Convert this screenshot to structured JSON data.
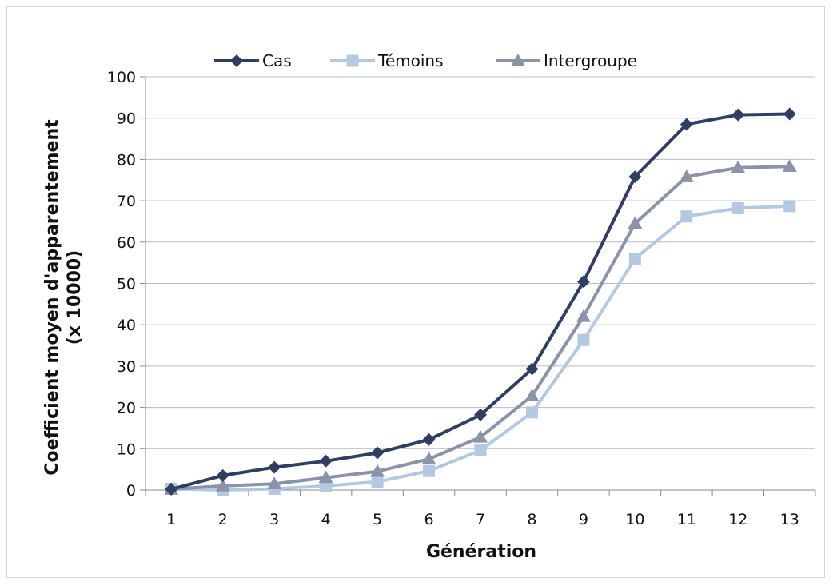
{
  "chart_data": {
    "type": "line",
    "title": "",
    "xlabel": "Génération",
    "ylabel_line1": "Coefficient moyen d'apparentement",
    "ylabel_line2": "(x 10000)",
    "ylim": [
      0,
      100
    ],
    "yticks": [
      0,
      10,
      20,
      30,
      40,
      50,
      60,
      70,
      80,
      90,
      100
    ],
    "grid": true,
    "legend_position": "top",
    "categories": [
      "1",
      "2",
      "3",
      "4",
      "5",
      "6",
      "7",
      "8",
      "9",
      "10",
      "11",
      "12",
      "13"
    ],
    "series": [
      {
        "name": "Cas",
        "marker": "diamond",
        "color": "#2f3e63",
        "values": [
          0.2,
          3.5,
          5.5,
          7.0,
          9.0,
          12.2,
          18.2,
          29.3,
          50.4,
          75.8,
          88.5,
          90.8,
          91.0
        ]
      },
      {
        "name": "Témoins",
        "marker": "square",
        "color": "#b3c9e2",
        "values": [
          0.3,
          0.0,
          0.3,
          1.0,
          2.0,
          4.6,
          9.6,
          18.8,
          36.3,
          56.0,
          66.2,
          68.2,
          68.7
        ]
      },
      {
        "name": "Intergroupe",
        "marker": "triangle",
        "color": "#8a93a8",
        "values": [
          0.2,
          1.0,
          1.5,
          3.0,
          4.5,
          7.5,
          12.8,
          22.8,
          42.0,
          64.5,
          75.8,
          78.0,
          78.3
        ]
      }
    ]
  }
}
